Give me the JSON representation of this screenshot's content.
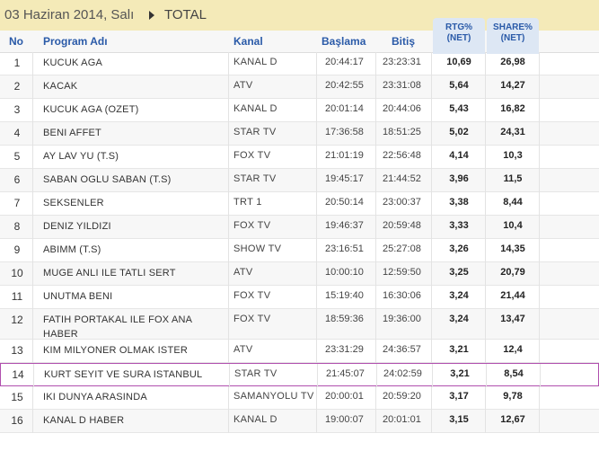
{
  "header": {
    "date": "03 Haziran 2014, Salı",
    "mode": "TOTAL",
    "rtg_label": "RTG% (NET)",
    "share_label": "SHARE% (NET)"
  },
  "columns": {
    "no": "No",
    "program": "Program Adı",
    "channel": "Kanal",
    "start": "Başlama",
    "end": "Bitiş"
  },
  "rows": [
    {
      "no": "1",
      "program": "KUCUK AGA",
      "channel": "KANAL D",
      "start": "20:44:17",
      "end": "23:23:31",
      "rtg": "10,69",
      "share": "26,98"
    },
    {
      "no": "2",
      "program": "KACAK",
      "channel": "ATV",
      "start": "20:42:55",
      "end": "23:31:08",
      "rtg": "5,64",
      "share": "14,27"
    },
    {
      "no": "3",
      "program": "KUCUK AGA (OZET)",
      "channel": "KANAL D",
      "start": "20:01:14",
      "end": "20:44:06",
      "rtg": "5,43",
      "share": "16,82"
    },
    {
      "no": "4",
      "program": "BENI AFFET",
      "channel": "STAR TV",
      "start": "17:36:58",
      "end": "18:51:25",
      "rtg": "5,02",
      "share": "24,31"
    },
    {
      "no": "5",
      "program": "AY LAV YU (T.S)",
      "channel": "FOX TV",
      "start": "21:01:19",
      "end": "22:56:48",
      "rtg": "4,14",
      "share": "10,3"
    },
    {
      "no": "6",
      "program": "SABAN OGLU SABAN (T.S)",
      "channel": "STAR TV",
      "start": "19:45:17",
      "end": "21:44:52",
      "rtg": "3,96",
      "share": "11,5"
    },
    {
      "no": "7",
      "program": "SEKSENLER",
      "channel": "TRT 1",
      "start": "20:50:14",
      "end": "23:00:37",
      "rtg": "3,38",
      "share": "8,44"
    },
    {
      "no": "8",
      "program": "DENIZ YILDIZI",
      "channel": "FOX TV",
      "start": "19:46:37",
      "end": "20:59:48",
      "rtg": "3,33",
      "share": "10,4"
    },
    {
      "no": "9",
      "program": "ABIMM (T.S)",
      "channel": "SHOW TV",
      "start": "23:16:51",
      "end": "25:27:08",
      "rtg": "3,26",
      "share": "14,35"
    },
    {
      "no": "10",
      "program": "MUGE ANLI ILE TATLI SERT",
      "channel": "ATV",
      "start": "10:00:10",
      "end": "12:59:50",
      "rtg": "3,25",
      "share": "20,79"
    },
    {
      "no": "11",
      "program": "UNUTMA BENI",
      "channel": "FOX TV",
      "start": "15:19:40",
      "end": "16:30:06",
      "rtg": "3,24",
      "share": "21,44"
    },
    {
      "no": "12",
      "program": "FATIH PORTAKAL ILE FOX ANA HABER",
      "channel": "FOX TV",
      "start": "18:59:36",
      "end": "19:36:00",
      "rtg": "3,24",
      "share": "13,47"
    },
    {
      "no": "13",
      "program": "KIM MILYONER OLMAK ISTER",
      "channel": "ATV",
      "start": "23:31:29",
      "end": "24:36:57",
      "rtg": "3,21",
      "share": "12,4"
    },
    {
      "no": "14",
      "program": "KURT SEYIT VE SURA ISTANBUL",
      "channel": "STAR TV",
      "start": "21:45:07",
      "end": "24:02:59",
      "rtg": "3,21",
      "share": "8,54"
    },
    {
      "no": "15",
      "program": "IKI DUNYA ARASINDA",
      "channel": "SAMANYOLU TV",
      "start": "20:00:01",
      "end": "20:59:20",
      "rtg": "3,17",
      "share": "9,78"
    },
    {
      "no": "16",
      "program": "KANAL D HABER",
      "channel": "KANAL D",
      "start": "19:00:07",
      "end": "20:01:01",
      "rtg": "3,15",
      "share": "12,67"
    }
  ]
}
